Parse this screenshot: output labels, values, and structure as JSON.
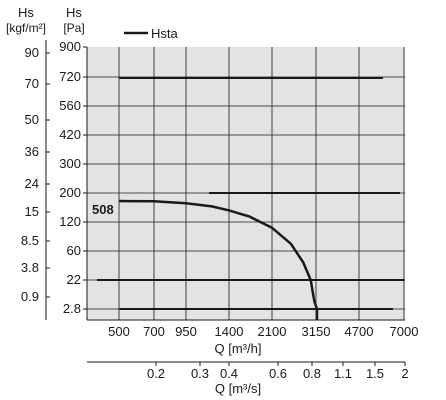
{
  "chart_data": {
    "type": "line",
    "title": "",
    "left_axis_1": {
      "unit_top": "Hs",
      "unit_bottom": "[kgf/m²]",
      "ticks": [
        "90",
        "70",
        "50",
        "36",
        "24",
        "15",
        "8.5",
        "3.8",
        "0.9"
      ]
    },
    "left_axis_2": {
      "unit_top": "Hs",
      "unit_bottom": "[Pa]",
      "ticks": [
        "900",
        "720",
        "560",
        "420",
        "300",
        "200",
        "120",
        "60",
        "22",
        "2.8"
      ]
    },
    "x_axis_1": {
      "label": "Q [m³/h]",
      "ticks": [
        "500",
        "700",
        "950",
        "1400",
        "2100",
        "3150",
        "4700",
        "7000"
      ]
    },
    "x_axis_2": {
      "label": "Q [m³/s]",
      "ticks": [
        "0.2",
        "0.3",
        "0.4",
        "0.6",
        "0.8",
        "1.1",
        "1.5",
        "2"
      ]
    },
    "legend": {
      "position": "top-left",
      "label": "Hsta"
    },
    "grid": true,
    "series": [
      {
        "name": "Hsta",
        "label": "508",
        "points": [
          {
            "x": 500,
            "y": 178
          },
          {
            "x": 700,
            "y": 177
          },
          {
            "x": 950,
            "y": 172
          },
          {
            "x": 1200,
            "y": 163
          },
          {
            "x": 1400,
            "y": 152
          },
          {
            "x": 1700,
            "y": 135
          },
          {
            "x": 2100,
            "y": 108
          },
          {
            "x": 2500,
            "y": 75
          },
          {
            "x": 2800,
            "y": 45
          },
          {
            "x": 3000,
            "y": 22
          },
          {
            "x": 3100,
            "y": 8
          },
          {
            "x": 3180,
            "y": 2.8
          }
        ]
      }
    ],
    "colors": {
      "plot_bg": "#e3e3e3",
      "grid": "#1a1a1a",
      "curve": "#1a1a1a"
    }
  }
}
